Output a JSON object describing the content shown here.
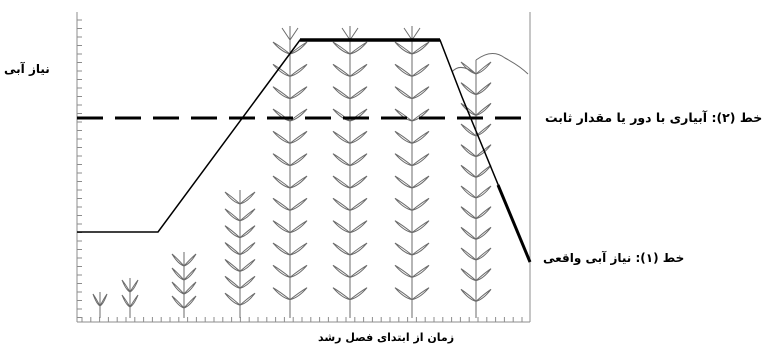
{
  "labels": {
    "y_axis": "نیاز آبی",
    "x_axis": "زمان از ابتدای فصل رشد",
    "line2": "خط (۲): آبیاری با دور یا مقدار ثابت",
    "line1": "خط (۱): نیاز آبی واقعی"
  },
  "colors": {
    "ink": "#000000",
    "plant": "#6b6b6b",
    "frame": "#9a9a9a"
  }
}
